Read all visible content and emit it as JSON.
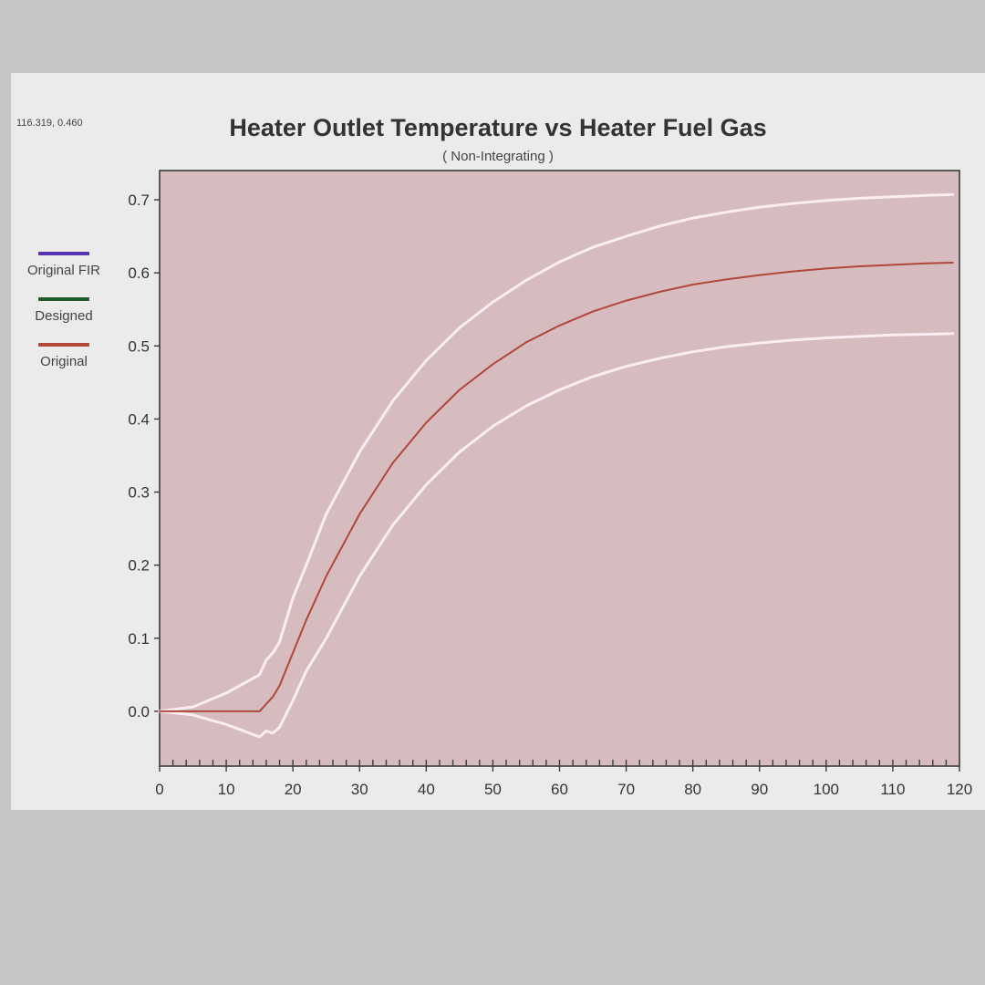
{
  "readout": "116.319, 0.460",
  "colors": {
    "plot_bg": "#d6bcbf",
    "frame": "#3a3a3a",
    "band": "#fbeef2",
    "original_fir": "#5533b0",
    "designed": "#1f5a2a",
    "original": "#b0473a"
  },
  "legend": [
    {
      "name": "Original FIR",
      "color": "#5533b0"
    },
    {
      "name": "Designed",
      "color": "#1f5a2a"
    },
    {
      "name": "Original",
      "color": "#b0473a"
    }
  ],
  "chart_data": {
    "type": "line",
    "title": "Heater Outlet Temperature vs Heater Fuel Gas",
    "subtitle": "( Non-Integrating )",
    "xlabel": "",
    "ylabel": "",
    "xlim": [
      0,
      120
    ],
    "ylim": [
      -0.075,
      0.74
    ],
    "xticks": [
      0,
      10,
      20,
      30,
      40,
      50,
      60,
      70,
      80,
      90,
      100,
      110,
      120
    ],
    "yticks": [
      0.0,
      0.1,
      0.2,
      0.3,
      0.4,
      0.5,
      0.6,
      0.7
    ],
    "ytick_labels": [
      "0.0",
      "0.1",
      "0.2",
      "0.3",
      "0.4",
      "0.5",
      "0.6",
      "0.7"
    ],
    "grid": false,
    "legend_position": "left",
    "series": [
      {
        "name": "Original",
        "color": "#b0473a",
        "role": "response",
        "x": [
          0,
          5,
          10,
          15,
          17,
          18,
          20,
          22,
          25,
          30,
          35,
          40,
          45,
          50,
          55,
          60,
          65,
          70,
          75,
          80,
          85,
          90,
          95,
          100,
          105,
          110,
          115,
          119
        ],
        "y": [
          0.0,
          0.0,
          0.0,
          0.0,
          0.02,
          0.035,
          0.08,
          0.125,
          0.185,
          0.27,
          0.34,
          0.395,
          0.44,
          0.475,
          0.505,
          0.528,
          0.547,
          0.562,
          0.574,
          0.584,
          0.591,
          0.597,
          0.602,
          0.606,
          0.609,
          0.611,
          0.613,
          0.614
        ]
      },
      {
        "name": "",
        "color": "#fbeef2",
        "role": "upper-band",
        "x": [
          0,
          5,
          10,
          15,
          16,
          17,
          18,
          20,
          22,
          25,
          30,
          35,
          40,
          45,
          50,
          55,
          60,
          65,
          70,
          75,
          80,
          85,
          90,
          95,
          100,
          105,
          110,
          115,
          119
        ],
        "y": [
          0.0,
          0.006,
          0.025,
          0.05,
          0.07,
          0.08,
          0.095,
          0.155,
          0.2,
          0.27,
          0.355,
          0.425,
          0.48,
          0.525,
          0.56,
          0.59,
          0.615,
          0.635,
          0.65,
          0.664,
          0.675,
          0.683,
          0.69,
          0.695,
          0.699,
          0.702,
          0.704,
          0.706,
          0.707
        ]
      },
      {
        "name": "",
        "color": "#fbeef2",
        "role": "lower-band",
        "x": [
          0,
          5,
          10,
          15,
          16,
          17,
          18,
          20,
          22,
          25,
          30,
          35,
          40,
          45,
          50,
          55,
          60,
          65,
          70,
          75,
          80,
          85,
          90,
          95,
          100,
          105,
          110,
          115,
          119
        ],
        "y": [
          0.0,
          -0.005,
          -0.018,
          -0.035,
          -0.027,
          -0.03,
          -0.022,
          0.015,
          0.055,
          0.1,
          0.185,
          0.255,
          0.31,
          0.355,
          0.39,
          0.418,
          0.44,
          0.458,
          0.472,
          0.483,
          0.492,
          0.499,
          0.504,
          0.508,
          0.511,
          0.513,
          0.515,
          0.516,
          0.517
        ]
      }
    ]
  }
}
